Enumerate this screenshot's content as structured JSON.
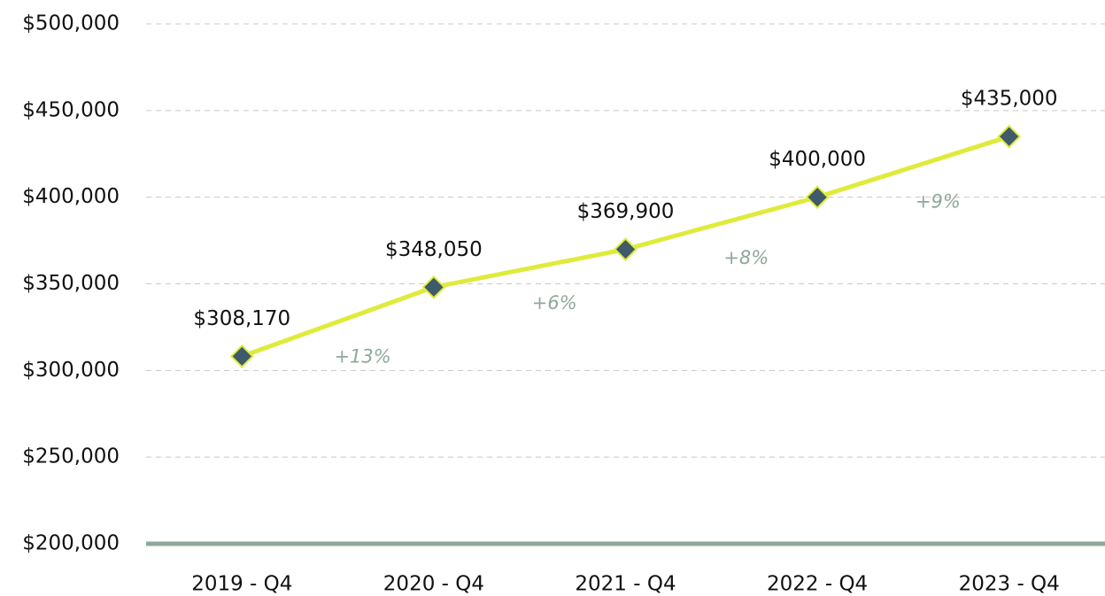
{
  "chart_data": {
    "type": "line",
    "categories": [
      "2019 - Q4",
      "2020 - Q4",
      "2021 - Q4",
      "2022 - Q4",
      "2023 - Q4"
    ],
    "series": [
      {
        "color": "#dfeb3b",
        "marker_color": "#3e5a6b",
        "values": [
          308170,
          348050,
          369900,
          400000,
          435000
        ],
        "value_labels": [
          "$308,170",
          "$348,050",
          "$369,900",
          "$400,000",
          "$435,000"
        ]
      }
    ],
    "annotations": [
      "+13%",
      "+6%",
      "+8%",
      "+9%"
    ],
    "ylim": [
      200000,
      500000
    ],
    "yticks": [
      {
        "value": 200000,
        "label": "$200,000"
      },
      {
        "value": 250000,
        "label": "$250,000"
      },
      {
        "value": 300000,
        "label": "$300,000"
      },
      {
        "value": 350000,
        "label": "$350,000"
      },
      {
        "value": 400000,
        "label": "$400,000"
      },
      {
        "value": 450000,
        "label": "$450,000"
      },
      {
        "value": 500000,
        "label": "$500,000"
      }
    ],
    "grid": true
  }
}
